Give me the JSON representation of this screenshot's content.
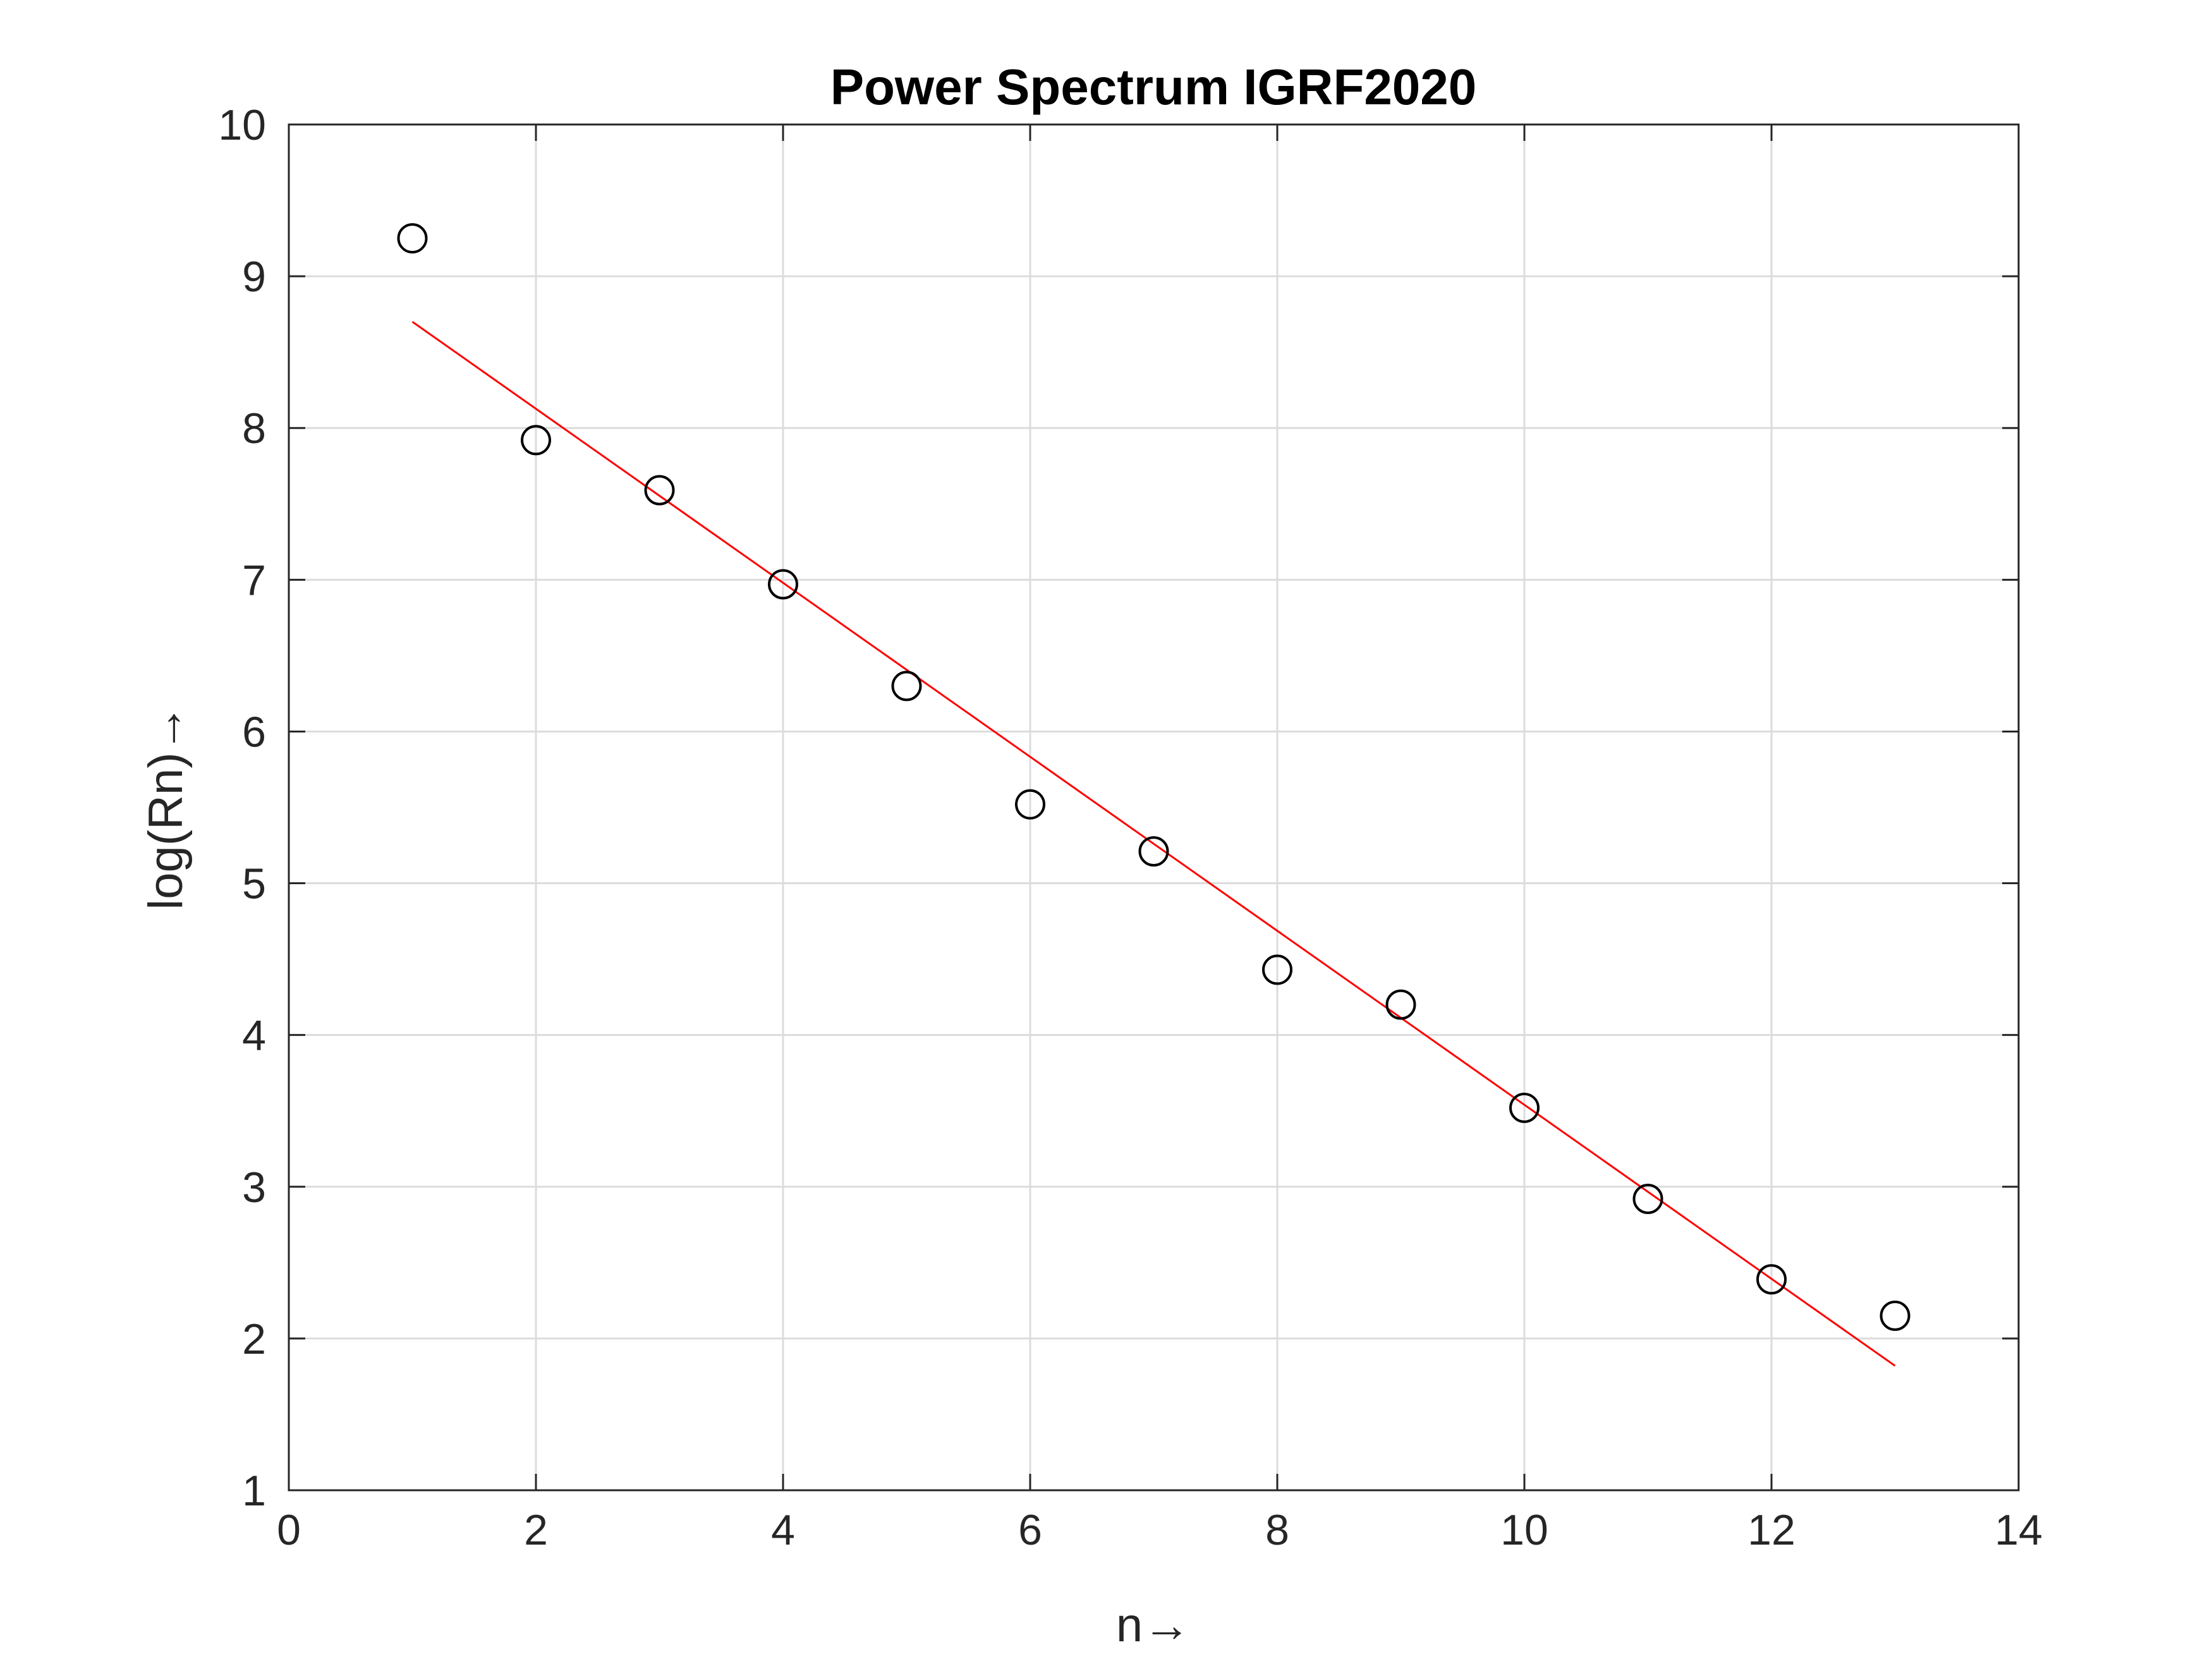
{
  "chart_data": {
    "type": "scatter",
    "title": "Power Spectrum IGRF2020",
    "xlabel": "n→",
    "ylabel": "log(Rn)→",
    "xlim": [
      0,
      14
    ],
    "ylim": [
      1,
      10
    ],
    "xticks": [
      0,
      2,
      4,
      6,
      8,
      10,
      12,
      14
    ],
    "yticks": [
      1,
      2,
      3,
      4,
      5,
      6,
      7,
      8,
      9,
      10
    ],
    "grid": true,
    "series": [
      {
        "marker": "circle",
        "color": "#000000",
        "x": [
          1,
          2,
          3,
          4,
          5,
          6,
          7,
          8,
          9,
          10,
          11,
          12,
          13
        ],
        "y": [
          9.25,
          7.92,
          7.59,
          6.97,
          6.3,
          5.52,
          5.21,
          4.43,
          4.2,
          3.52,
          2.92,
          2.39,
          2.15
        ]
      },
      {
        "style": "line",
        "color": "#ff0000",
        "x": [
          1,
          13
        ],
        "y": [
          8.7,
          1.82
        ]
      }
    ]
  }
}
